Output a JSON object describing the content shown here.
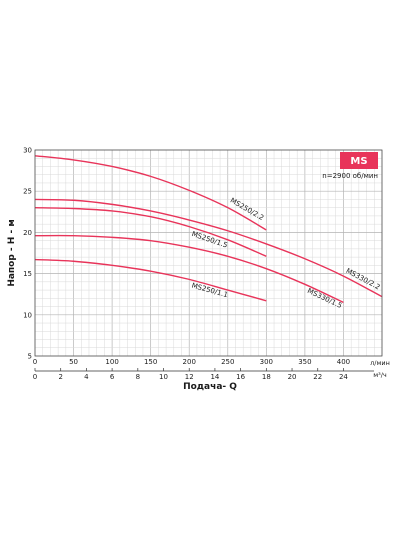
{
  "chart_data": {
    "type": "line",
    "title": "",
    "badge": "MS",
    "speed_note": "n=2900 об/мин",
    "xlabel": "Подача- Q",
    "ylabel": "Напор - Н - м",
    "x_unit_primary": "л/мин",
    "x_unit_secondary": "м³/ч",
    "xlim": [
      0,
      450
    ],
    "ylim": [
      5,
      30
    ],
    "x_ticks_primary": [
      0,
      50,
      100,
      150,
      200,
      250,
      300,
      350,
      400
    ],
    "x_ticks_secondary": [
      0,
      2,
      4,
      6,
      8,
      10,
      12,
      14,
      16,
      18,
      20,
      22,
      24
    ],
    "y_ticks": [
      5,
      10,
      15,
      20,
      25,
      30
    ],
    "grid": true,
    "line_color": "#e8345a",
    "badge_color": "#e8345a",
    "series": [
      {
        "name": "MS250/2.2",
        "x": [
          0,
          50,
          100,
          150,
          200,
          250,
          300
        ],
        "y": [
          29.3,
          28.8,
          28.0,
          26.8,
          25.1,
          23.0,
          20.3
        ]
      },
      {
        "name": "MS330/2.2",
        "x": [
          0,
          50,
          100,
          150,
          200,
          250,
          300,
          350,
          400,
          450
        ],
        "y": [
          24.0,
          23.9,
          23.4,
          22.6,
          21.5,
          20.2,
          18.6,
          16.8,
          14.7,
          12.2
        ]
      },
      {
        "name": "MS250/1.5",
        "x": [
          0,
          50,
          100,
          150,
          200,
          250,
          300
        ],
        "y": [
          23.0,
          22.9,
          22.6,
          21.9,
          20.7,
          19.1,
          17.1
        ]
      },
      {
        "name": "MS330/1.5",
        "x": [
          0,
          50,
          100,
          150,
          200,
          250,
          300,
          350,
          400
        ],
        "y": [
          19.6,
          19.6,
          19.4,
          19.0,
          18.2,
          17.1,
          15.6,
          13.7,
          11.5
        ]
      },
      {
        "name": "MS250/1.1",
        "x": [
          0,
          50,
          100,
          150,
          200,
          250,
          300
        ],
        "y": [
          16.7,
          16.5,
          16.0,
          15.3,
          14.3,
          13.0,
          11.7
        ]
      }
    ]
  }
}
